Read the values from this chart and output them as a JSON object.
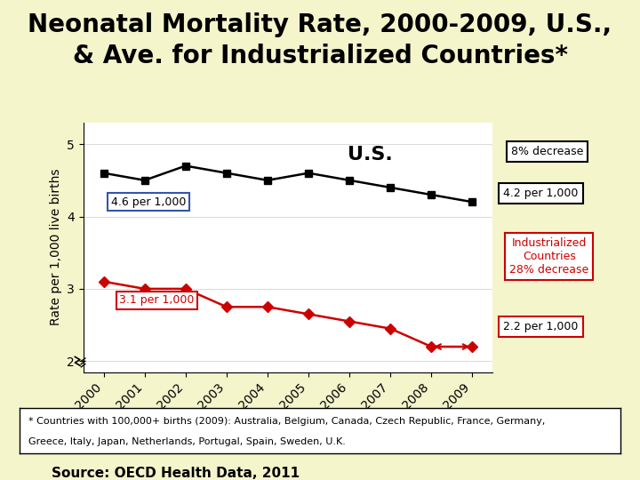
{
  "title_line1": "Neonatal Mortality Rate, 2000-2009, U.S.,",
  "title_line2": "& Ave. for Industrialized Countries*",
  "background_color": "#f5f5cc",
  "plot_bg_color": "#ffffff",
  "years": [
    2000,
    2001,
    2002,
    2003,
    2004,
    2005,
    2006,
    2007,
    2008,
    2009
  ],
  "us_data": [
    4.6,
    4.5,
    4.7,
    4.6,
    4.5,
    4.6,
    4.5,
    4.4,
    4.3,
    4.2
  ],
  "ind_data": [
    3.1,
    3.0,
    3.0,
    2.75,
    2.75,
    2.65,
    2.55,
    2.45,
    2.2,
    2.2
  ],
  "us_color": "#000000",
  "ind_color": "#cc0000",
  "ylabel": "Rate per 1,000 live births",
  "ylim": [
    1.85,
    5.3
  ],
  "yticks": [
    2,
    3,
    4,
    5
  ],
  "footnote1": "* Countries with 100,000+ births (2009): Australia, Belgium, Canada, Czech Republic, France, Germany,",
  "footnote2": "Greece, Italy, Japan, Netherlands, Portugal, Spain, Sweden, U.K.",
  "source": "Source: OECD Health Data, 2011",
  "title_fontsize": 20,
  "axis_fontsize": 10
}
